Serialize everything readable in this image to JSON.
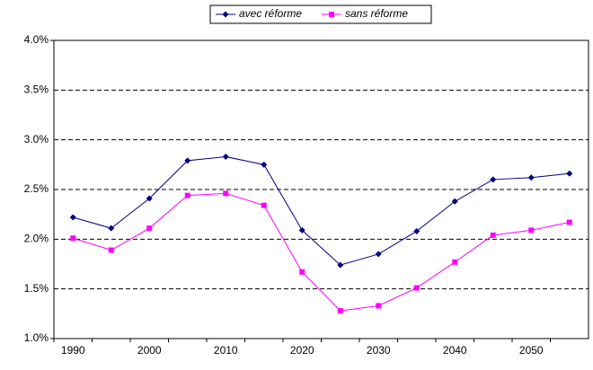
{
  "chart_data": {
    "type": "line",
    "categories": [
      "1990",
      null,
      "2000",
      null,
      "2010",
      null,
      "2020",
      null,
      "2030",
      null,
      "2040",
      null,
      "2050",
      null
    ],
    "series": [
      {
        "name": "avec réforme",
        "color": "#000080",
        "marker": "diamond",
        "values": [
          2.22,
          2.11,
          2.41,
          2.79,
          2.83,
          2.75,
          2.09,
          1.74,
          1.85,
          2.08,
          2.38,
          2.6,
          2.62,
          2.66
        ]
      },
      {
        "name": "sans réforme",
        "color": "#ff00ff",
        "marker": "square",
        "values": [
          2.01,
          1.89,
          2.11,
          2.44,
          2.46,
          2.34,
          1.67,
          1.28,
          1.33,
          1.51,
          1.77,
          2.04,
          2.09,
          2.17
        ]
      }
    ],
    "ylim": [
      1,
      4
    ],
    "yticks": [
      {
        "value": 1,
        "label": "1.0%"
      },
      {
        "value": 1.5,
        "label": "1.5%"
      },
      {
        "value": 2,
        "label": "2.0%"
      },
      {
        "value": 2.5,
        "label": "2.5%"
      },
      {
        "value": 3,
        "label": "3.0%"
      },
      {
        "value": 3.5,
        "label": "3.5%"
      },
      {
        "value": 4,
        "label": "4.0%"
      }
    ],
    "grid": true,
    "legend": "top"
  }
}
